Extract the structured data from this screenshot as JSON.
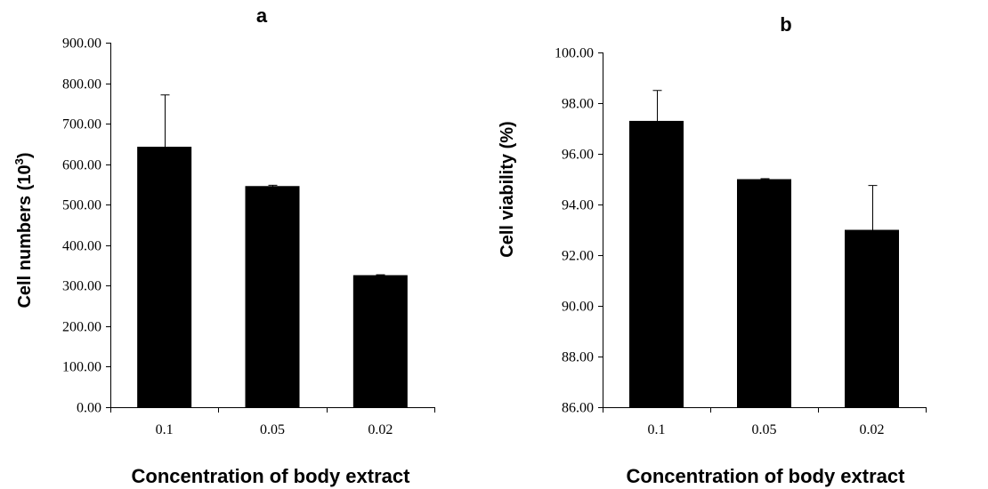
{
  "chart_data": [
    {
      "type": "bar",
      "title": "a",
      "xlabel": "Concentration of body extract",
      "ylabel": "Cell numbers (10",
      "ylabel_sup": "3",
      "ylabel_end": ")",
      "categories": [
        "0.1",
        "0.05",
        "0.02"
      ],
      "values": [
        643,
        546,
        326
      ],
      "errors": [
        128,
        2,
        1
      ],
      "ylim": [
        0,
        900
      ],
      "yticks": [
        "0.00",
        "100.00",
        "200.00",
        "300.00",
        "400.00",
        "500.00",
        "600.00",
        "700.00",
        "800.00",
        "900.00"
      ],
      "grid": false,
      "color": "#000000"
    },
    {
      "type": "bar",
      "title": "b",
      "xlabel": "Concentration of body extract",
      "ylabel": "Cell viability (%)",
      "categories": [
        "0.1",
        "0.05",
        "0.02"
      ],
      "values": [
        97.3,
        95.0,
        93.0
      ],
      "errors": [
        1.2,
        0.02,
        1.75
      ],
      "ylim": [
        86,
        100
      ],
      "yticks": [
        "86.00",
        "88.00",
        "90.00",
        "92.00",
        "94.00",
        "96.00",
        "98.00",
        "100.00"
      ],
      "grid": false,
      "color": "#000000"
    }
  ]
}
